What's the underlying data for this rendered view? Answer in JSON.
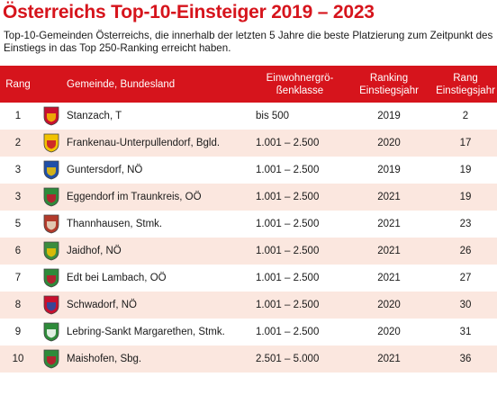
{
  "title": "Österreichs Top-10-Einsteiger 2019 – 2023",
  "subtitle": "Top-10-Gemeinden Österreichs, die innerhalb der letzten 5 Jahre die beste Platzierung zum Zeitpunkt des Einstiegs in das Top 250-Ranking erreicht haben.",
  "colors": {
    "accent": "#d6141c",
    "row_alt": "#fbe7df"
  },
  "table": {
    "headers": {
      "rang": "Rang",
      "gemeinde": "Gemeinde, Bundesland",
      "klasse_line1": "Einwohnergrö-",
      "klasse_line2": "ßenklasse",
      "ranking_line1": "Ranking",
      "ranking_line2": "Einstiegsjahr",
      "rang2_line1": "Rang",
      "rang2_line2": "Einstiegsjahr"
    },
    "rows": [
      {
        "rank": "1",
        "name": "Stanzach, T",
        "klasse": "bis 500",
        "year": "2019",
        "rang": "2",
        "crest": "coat-of-arms-stanzach",
        "c1": "#c8102e",
        "c2": "#f2c200"
      },
      {
        "rank": "2",
        "name": "Frankenau-Unterpullendorf, Bgld.",
        "klasse": "1.001 – 2.500",
        "year": "2020",
        "rang": "17",
        "crest": "coat-of-arms-frankenau",
        "c1": "#f2c200",
        "c2": "#c8102e"
      },
      {
        "rank": "3",
        "name": "Guntersdorf, NÖ",
        "klasse": "1.001 – 2.500",
        "year": "2019",
        "rang": "19",
        "crest": "coat-of-arms-guntersdorf",
        "c1": "#1f4fa8",
        "c2": "#f2c200"
      },
      {
        "rank": "3",
        "name": "Eggendorf im Traunkreis, OÖ",
        "klasse": "1.001 – 2.500",
        "year": "2021",
        "rang": "19",
        "crest": "coat-of-arms-eggendorf",
        "c1": "#2e8b3a",
        "c2": "#c8102e"
      },
      {
        "rank": "5",
        "name": "Thannhausen, Stmk.",
        "klasse": "1.001 – 2.500",
        "year": "2021",
        "rang": "23",
        "crest": "coat-of-arms-thannhausen",
        "c1": "#b33a2b",
        "c2": "#e8e0c8"
      },
      {
        "rank": "6",
        "name": "Jaidhof, NÖ",
        "klasse": "1.001 – 2.500",
        "year": "2021",
        "rang": "26",
        "crest": "coat-of-arms-jaidhof",
        "c1": "#3b8c3e",
        "c2": "#f2c200"
      },
      {
        "rank": "7",
        "name": "Edt bei Lambach, OÖ",
        "klasse": "1.001 – 2.500",
        "year": "2021",
        "rang": "27",
        "crest": "coat-of-arms-edt",
        "c1": "#2e8b3a",
        "c2": "#c8102e"
      },
      {
        "rank": "8",
        "name": "Schwadorf, NÖ",
        "klasse": "1.001 – 2.500",
        "year": "2020",
        "rang": "30",
        "crest": "coat-of-arms-schwadorf",
        "c1": "#c8102e",
        "c2": "#1f4fa8"
      },
      {
        "rank": "9",
        "name": "Lebring-Sankt Margarethen, Stmk.",
        "klasse": "1.001 – 2.500",
        "year": "2020",
        "rang": "31",
        "crest": "coat-of-arms-lebring",
        "c1": "#2e8b3a",
        "c2": "#ffffff"
      },
      {
        "rank": "10",
        "name": "Maishofen, Sbg.",
        "klasse": "2.501 – 5.000",
        "year": "2021",
        "rang": "36",
        "crest": "coat-of-arms-maishofen",
        "c1": "#2e8b3a",
        "c2": "#c8102e"
      }
    ]
  }
}
